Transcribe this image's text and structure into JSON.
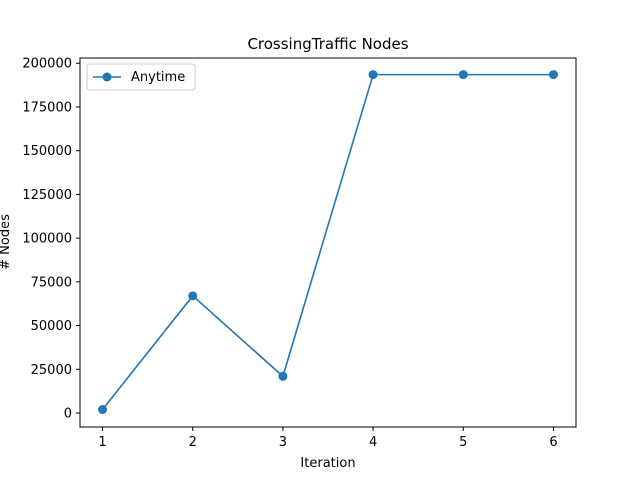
{
  "chart_data": {
    "type": "line",
    "title": "CrossingTraffic Nodes",
    "xlabel": "Iteration",
    "ylabel": "# Nodes",
    "x": [
      1,
      2,
      3,
      4,
      5,
      6
    ],
    "xticks": [
      "1",
      "2",
      "3",
      "4",
      "5",
      "6"
    ],
    "xlim": [
      0.75,
      6.25
    ],
    "yticks": [
      "0",
      "25000",
      "50000",
      "75000",
      "100000",
      "125000",
      "150000",
      "175000",
      "200000"
    ],
    "ylim": [
      -8000,
      203000
    ],
    "grid": false,
    "legend_position": "top-left",
    "series": [
      {
        "name": "Anytime",
        "color": "#1f77b4",
        "marker": "circle",
        "values": [
          2000,
          67000,
          21000,
          193500,
          193500,
          193500
        ]
      }
    ]
  }
}
